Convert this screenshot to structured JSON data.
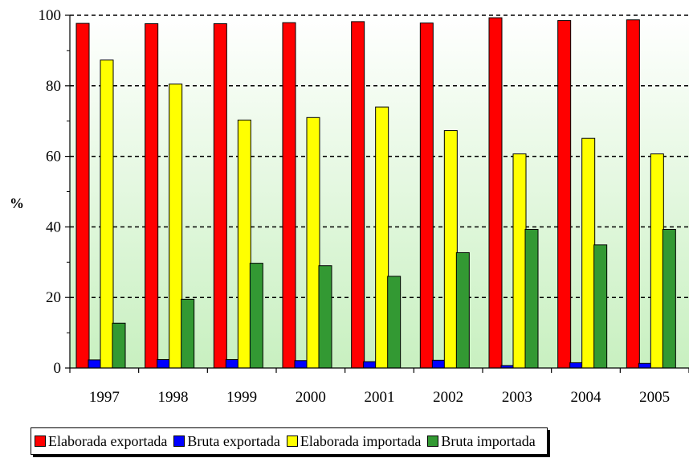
{
  "chart_data": {
    "type": "bar",
    "title": "",
    "xlabel": "",
    "ylabel": "%",
    "ylim": [
      0,
      100
    ],
    "yticks": [
      0,
      20,
      40,
      60,
      80,
      100
    ],
    "grid": "dashed horizontal",
    "legend_position": "bottom",
    "categories": [
      "1997",
      "1998",
      "1999",
      "2000",
      "2001",
      "2002",
      "2003",
      "2004",
      "2005"
    ],
    "series": [
      {
        "name": "Elaborada exportada",
        "color": "#ff0000",
        "values": [
          97.7,
          97.6,
          97.6,
          97.9,
          98.2,
          97.8,
          99.3,
          98.5,
          98.7
        ]
      },
      {
        "name": "Bruta exportada",
        "color": "#0000ff",
        "values": [
          2.3,
          2.4,
          2.4,
          2.1,
          1.8,
          2.2,
          0.7,
          1.5,
          1.3
        ]
      },
      {
        "name": "Elaborada importada",
        "color": "#ffff00",
        "values": [
          87.3,
          80.5,
          70.3,
          71.0,
          74.0,
          67.3,
          60.7,
          65.1,
          60.7
        ]
      },
      {
        "name": "Bruta importada",
        "color": "#339933",
        "values": [
          12.7,
          19.5,
          29.7,
          29.0,
          26.0,
          32.7,
          39.3,
          34.9,
          39.3
        ]
      }
    ]
  }
}
